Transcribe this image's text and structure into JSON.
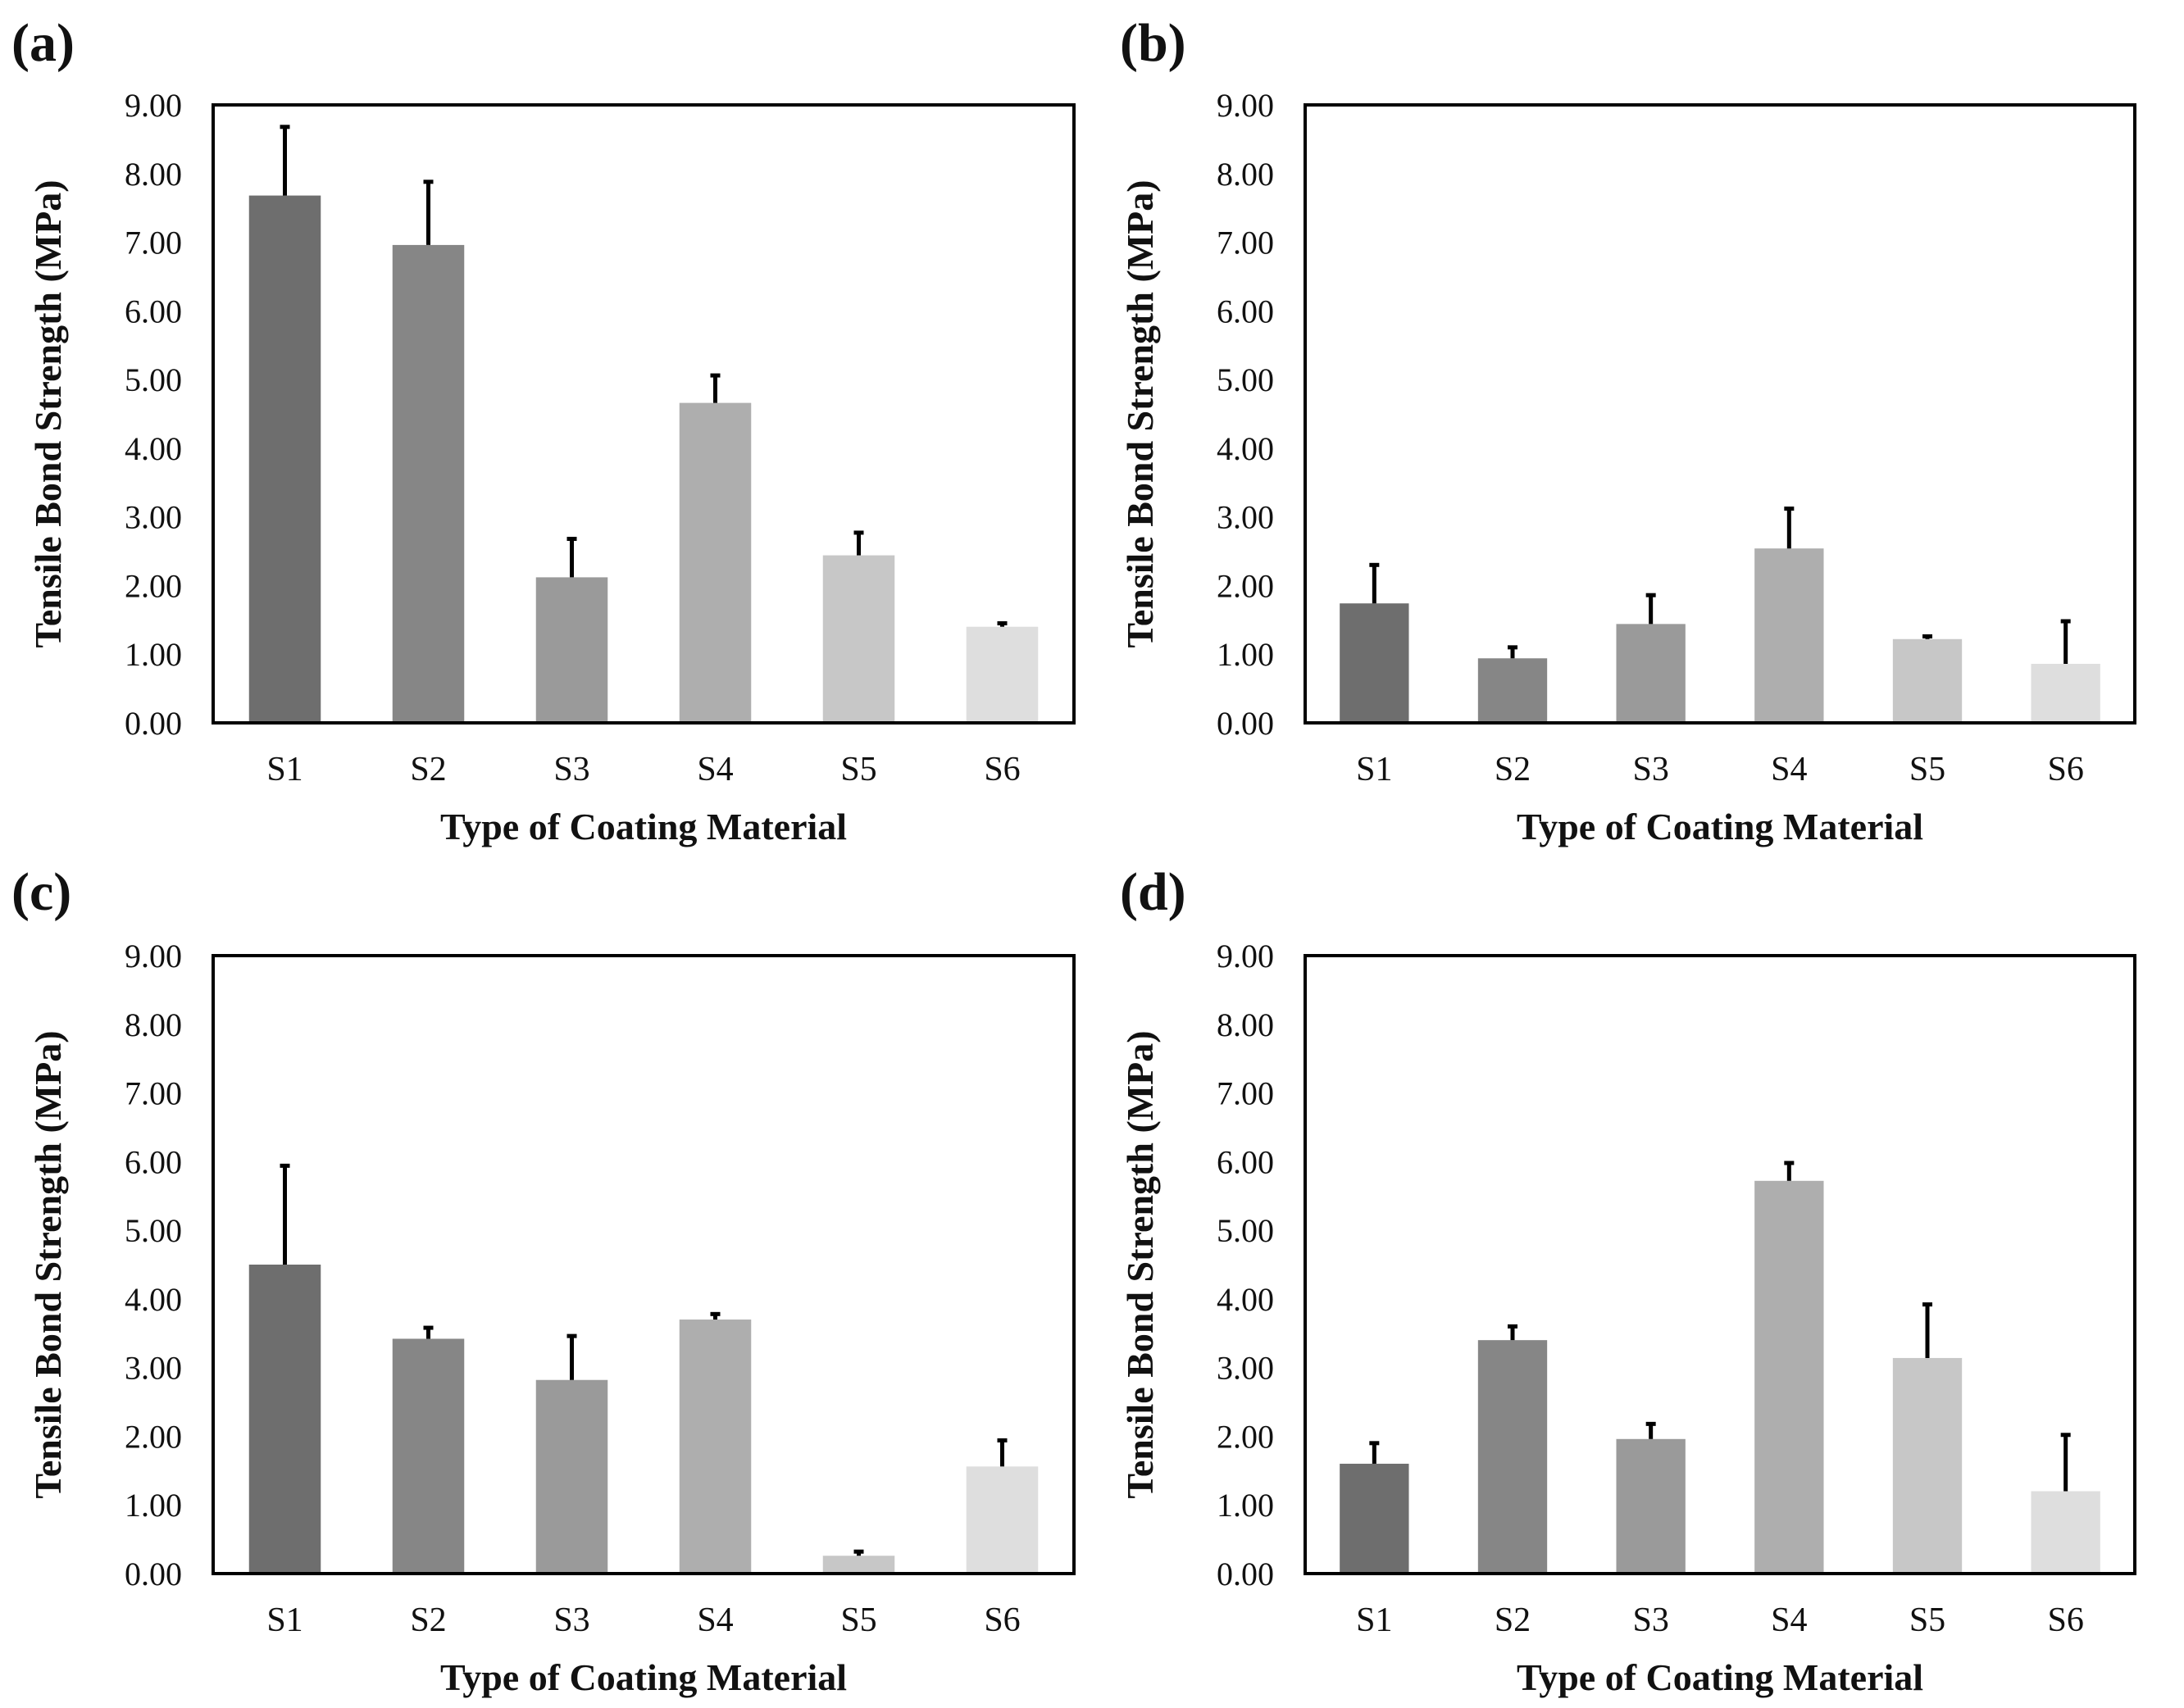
{
  "chart_data": [
    {
      "panel": "(a)",
      "type": "bar",
      "categories": [
        "S1",
        "S2",
        "S3",
        "S4",
        "S5",
        "S6"
      ],
      "values": [
        7.68,
        6.96,
        2.12,
        4.66,
        2.44,
        1.4
      ],
      "error_plus": [
        1.0,
        0.92,
        0.56,
        0.4,
        0.33,
        0.05
      ],
      "xlabel": "Type of Coating Material",
      "ylabel": "Tensile Bond Strength (MPa)",
      "ylim": [
        0,
        9
      ],
      "yticks": [
        "0.00",
        "1.00",
        "2.00",
        "3.00",
        "4.00",
        "5.00",
        "6.00",
        "7.00",
        "8.00",
        "9.00"
      ],
      "grid": false
    },
    {
      "panel": "(b)",
      "type": "bar",
      "categories": [
        "S1",
        "S2",
        "S3",
        "S4",
        "S5",
        "S6"
      ],
      "values": [
        1.74,
        0.94,
        1.44,
        2.54,
        1.22,
        0.86
      ],
      "error_plus": [
        0.56,
        0.16,
        0.42,
        0.58,
        0.04,
        0.62
      ],
      "xlabel": "Type of Coating Material",
      "ylabel": "Tensile Bond Strength (MPa)",
      "ylim": [
        0,
        9
      ],
      "yticks": [
        "0.00",
        "1.00",
        "2.00",
        "3.00",
        "4.00",
        "5.00",
        "6.00",
        "7.00",
        "8.00",
        "9.00"
      ],
      "grid": false
    },
    {
      "panel": "(c)",
      "type": "bar",
      "categories": [
        "S1",
        "S2",
        "S3",
        "S4",
        "S5",
        "S6"
      ],
      "values": [
        4.5,
        3.42,
        2.82,
        3.7,
        0.26,
        1.56
      ],
      "error_plus": [
        1.44,
        0.16,
        0.64,
        0.08,
        0.06,
        0.38
      ],
      "xlabel": "Type of Coating Material",
      "ylabel": "Tensile Bond Strength (MPa)",
      "ylim": [
        0,
        9
      ],
      "yticks": [
        "0.00",
        "1.00",
        "2.00",
        "3.00",
        "4.00",
        "5.00",
        "6.00",
        "7.00",
        "8.00",
        "9.00"
      ],
      "grid": false
    },
    {
      "panel": "(d)",
      "type": "bar",
      "categories": [
        "S1",
        "S2",
        "S3",
        "S4",
        "S5",
        "S6"
      ],
      "values": [
        1.6,
        3.4,
        1.96,
        5.72,
        3.14,
        1.2
      ],
      "error_plus": [
        0.3,
        0.2,
        0.22,
        0.26,
        0.78,
        0.82
      ],
      "xlabel": "Type of Coating Material",
      "ylabel": "Tensile Bond Strength (MPa)",
      "ylim": [
        0,
        9
      ],
      "yticks": [
        "0.00",
        "1.00",
        "2.00",
        "3.00",
        "4.00",
        "5.00",
        "6.00",
        "7.00",
        "8.00",
        "9.00"
      ],
      "grid": false
    }
  ],
  "bar_colors": [
    "#6e6e6e",
    "#868686",
    "#9a9a9a",
    "#aeaeae",
    "#c7c7c7",
    "#dedede"
  ]
}
